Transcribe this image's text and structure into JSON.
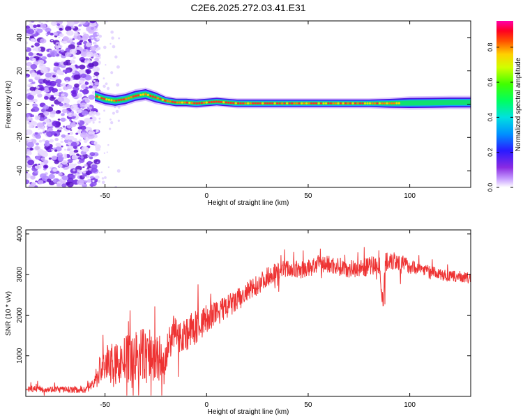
{
  "title": "C2E6.2025.272.03.41.E31",
  "chart_data": [
    {
      "type": "heatmap",
      "xlabel": "Height of straight line (km)",
      "ylabel": "Frequency (Hz)",
      "xlim": [
        -89,
        130
      ],
      "ylim": [
        -50,
        50
      ],
      "xticks": [
        -50,
        0,
        50,
        100
      ],
      "yticks": [
        -40,
        -20,
        0,
        20,
        40
      ],
      "noise_region_x": [
        -89,
        -56
      ],
      "ridge": {
        "x": [
          -55,
          -50,
          -45,
          -40,
          -35,
          -30,
          -25,
          -20,
          -15,
          -10,
          -5,
          0,
          5,
          10,
          15,
          20,
          30,
          40,
          50,
          60,
          70,
          80,
          90,
          100,
          110,
          120,
          130
        ],
        "y": [
          5,
          3,
          2,
          3,
          5,
          6,
          4,
          2,
          1,
          1,
          0.5,
          1,
          1.5,
          1,
          0.5,
          0.5,
          0.5,
          0.5,
          0.5,
          0.5,
          0.5,
          0.5,
          0.5,
          0.7,
          0.8,
          1,
          1
        ],
        "width": [
          4,
          4,
          4,
          4,
          4,
          4,
          4,
          3,
          3,
          3,
          3,
          3,
          3,
          3,
          3,
          3,
          3,
          3,
          3,
          3,
          3,
          3,
          3.5,
          4,
          4,
          4,
          4
        ]
      },
      "colorbar": {
        "label": "Normalized spectral amplitude",
        "range": [
          0.0,
          0.95
        ],
        "ticks": [
          0.0,
          0.2,
          0.4,
          0.6,
          0.8
        ],
        "tick_labels": [
          "0.0",
          "0.2",
          "0.4",
          "0.6",
          "0.8"
        ]
      }
    },
    {
      "type": "line",
      "xlabel": "Height of straight line (km)",
      "ylabel": "SNR (10 * v/v)",
      "xlim": [
        -89,
        130
      ],
      "ylim": [
        0,
        4100
      ],
      "xticks": [
        -50,
        0,
        50,
        100
      ],
      "yticks": [
        1000,
        2000,
        3000,
        4000
      ],
      "color": "#ee3333",
      "series": [
        {
          "x": [
            -89,
            -80,
            -70,
            -60,
            -56,
            -52,
            -48,
            -44,
            -40,
            -36,
            -32,
            -28,
            -24,
            -20,
            -17,
            -15,
            -12,
            -8,
            -4,
            0,
            5,
            10,
            15,
            20,
            25,
            30,
            35,
            40,
            45,
            50,
            55,
            60,
            65,
            70,
            75,
            80,
            85,
            87,
            88,
            90,
            95,
            100,
            105,
            110,
            115,
            120,
            125,
            130
          ],
          "values": [
            200,
            180,
            170,
            160,
            300,
            700,
            850,
            800,
            900,
            950,
            1000,
            1000,
            900,
            800,
            1600,
            1500,
            1500,
            1600,
            1750,
            1900,
            2050,
            2200,
            2350,
            2550,
            2750,
            2950,
            3100,
            3150,
            3100,
            3150,
            3250,
            3250,
            3200,
            3150,
            3150,
            3200,
            3250,
            2200,
            3300,
            3400,
            3300,
            3200,
            3150,
            3100,
            3000,
            2950,
            2950,
            2900
          ],
          "noise": [
            80,
            80,
            80,
            80,
            150,
            450,
            450,
            500,
            600,
            650,
            700,
            750,
            650,
            600,
            450,
            400,
            420,
            450,
            420,
            380,
            320,
            300,
            300,
            280,
            260,
            240,
            230,
            220,
            220,
            220,
            230,
            230,
            230,
            230,
            220,
            240,
            250,
            200,
            400,
            300,
            230,
            180,
            150,
            140,
            140,
            140,
            140,
            140
          ]
        }
      ]
    }
  ]
}
